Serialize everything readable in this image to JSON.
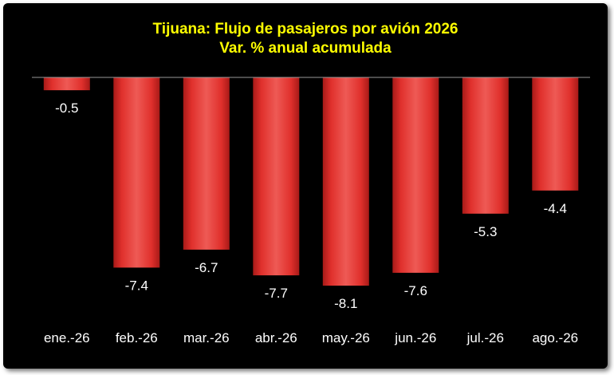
{
  "chart_data": {
    "type": "bar",
    "title": "Tijuana: Flujo de pasajeros por avión 2026",
    "subtitle": "Var. % anual acumulada",
    "categories": [
      "ene.-26",
      "feb.-26",
      "mar.-26",
      "abr.-26",
      "may.-26",
      "jun.-26",
      "jul.-26",
      "ago.-26"
    ],
    "values": [
      -0.5,
      -7.4,
      -6.7,
      -7.7,
      -8.1,
      -7.6,
      -5.3,
      -4.4
    ],
    "value_labels": [
      "-0.5",
      "-7.4",
      "-6.7",
      "-7.7",
      "-8.1",
      "-7.6",
      "-5.3",
      "-4.4"
    ],
    "ylim": [
      -8.1,
      0
    ],
    "grid": false,
    "legend": "none",
    "colors": {
      "background": "#000000",
      "bar": "#e0302c",
      "title": "#ffff00",
      "text": "#ffffff",
      "axis": "#999999"
    }
  }
}
